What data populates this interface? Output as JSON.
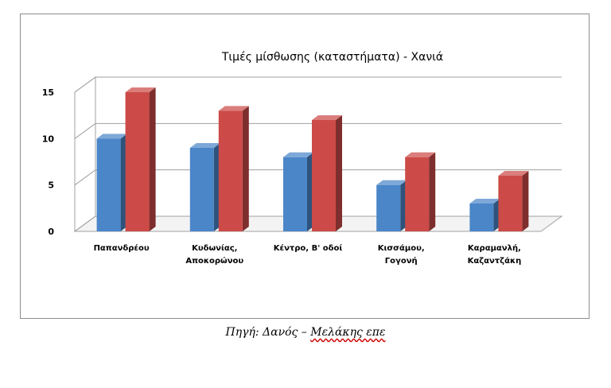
{
  "chart_data": {
    "type": "bar",
    "title": "Τιμές μίσθωσης (καταστήματα) - Χανιά",
    "xlabel": "",
    "ylabel": "",
    "categories": [
      [
        "Παπανδρέου"
      ],
      [
        "Κυδωνίας,",
        "Αποκορώνου"
      ],
      [
        "Κέντρο, Β' οδοί"
      ],
      [
        "Κισσάμου,",
        "Γογονή"
      ],
      [
        "Καραμανλή,",
        "Καζαντζάκη"
      ]
    ],
    "series": [
      {
        "values": [
          10,
          9,
          8,
          5,
          3
        ],
        "color": "#4a86c8"
      },
      {
        "values": [
          15,
          13,
          12,
          8,
          6
        ],
        "color": "#cc4a47"
      }
    ],
    "ylim": [
      0,
      15
    ],
    "yticks": [
      0,
      5,
      10,
      15
    ],
    "grid": true,
    "legend": "none",
    "style": "3d-columns"
  },
  "caption": {
    "source_prefix": "Πηγή: Δανός – ",
    "source_underlined": "Μελάκης επε"
  }
}
